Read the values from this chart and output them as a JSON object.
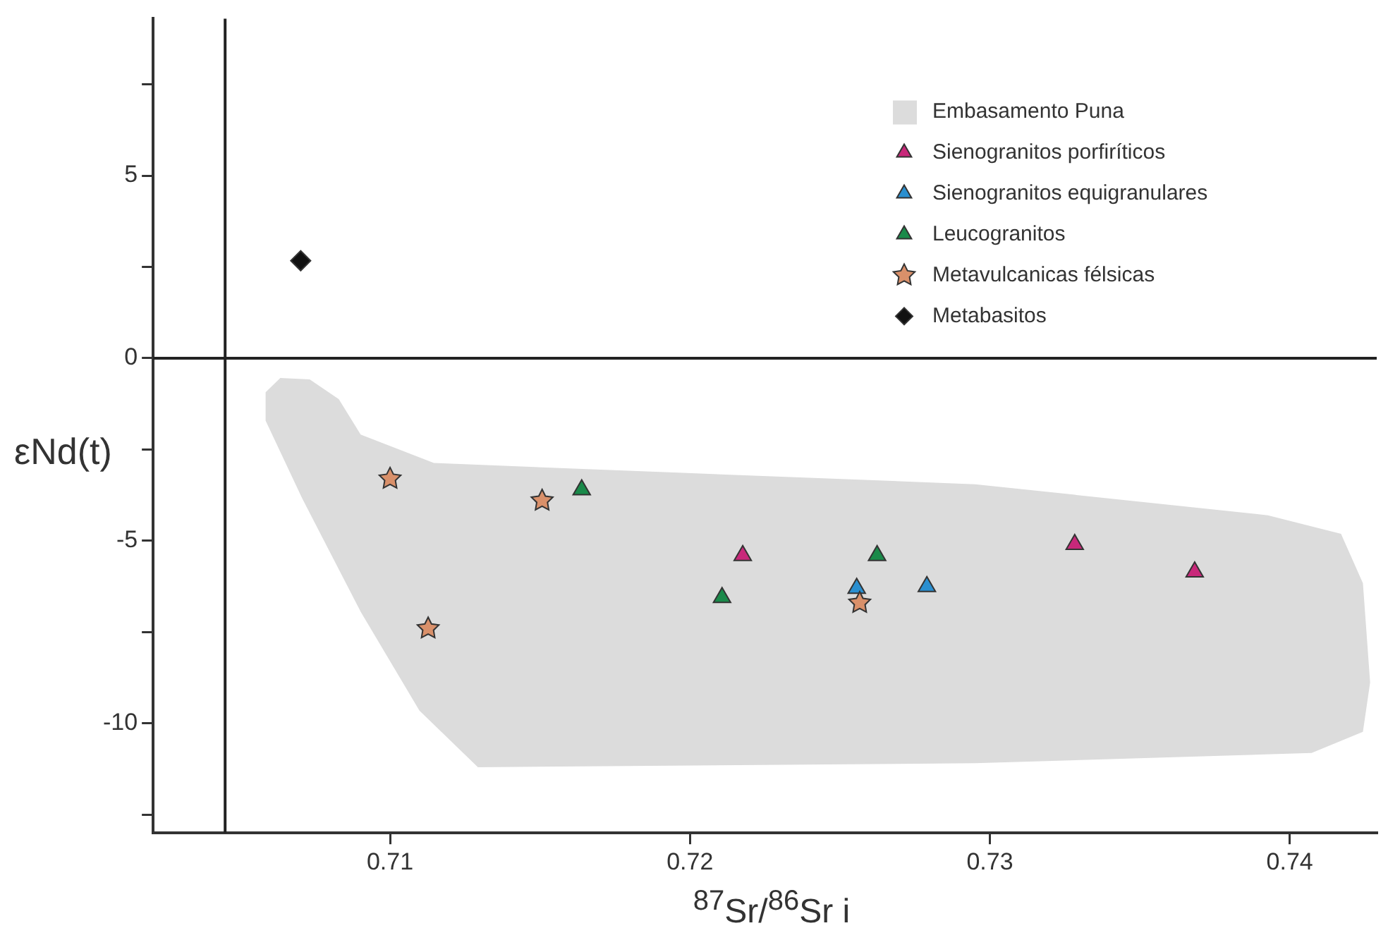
{
  "chart_data": {
    "type": "scatter",
    "xlabel": "$^{87}$Sr/$^{86}$Sr i",
    "ylabel": "εNd(t)",
    "xlim": [
      0.7021,
      0.7429
    ],
    "ylim": [
      -13,
      9.3
    ],
    "xticks": [
      0.71,
      0.72,
      0.73,
      0.74
    ],
    "yticks": [
      {
        "value": -12.5,
        "label": null
      },
      -10,
      {
        "value": -7.5,
        "label": null
      },
      -5,
      {
        "value": -2.5,
        "label": null
      },
      0,
      {
        "value": 2.5,
        "label": null
      },
      5,
      {
        "value": 7.5,
        "label": null
      }
    ],
    "grid": false,
    "legend": "top right",
    "ref_lines": [
      {
        "axis": "x",
        "value": 0.7045,
        "color": "#222222"
      },
      {
        "axis": "y",
        "value": 0,
        "color": "#222222"
      }
    ],
    "series": [
      {
        "name": "Embasamento Puna",
        "type": "area",
        "color": "#dcdcdc",
        "x": [
          0.70585,
          0.70634,
          0.70732,
          0.70829,
          0.70902,
          0.71146,
          0.71976,
          0.72951,
          0.73927,
          0.74171,
          0.74244,
          0.74268,
          0.74244,
          0.74073,
          0.72951,
          0.71293,
          0.71098,
          0.70902,
          0.70707,
          0.70585
        ],
        "values": [
          -0.93,
          -0.54,
          -0.58,
          -1.12,
          -2.09,
          -2.87,
          -3.14,
          -3.45,
          -4.3,
          -4.81,
          -6.16,
          -8.88,
          -10.23,
          -10.81,
          -11.09,
          -11.2,
          -9.65,
          -6.94,
          -3.84,
          -1.71
        ]
      },
      {
        "name": "Sienogranitos porfiríticos",
        "type": "scatter",
        "marker": "triangle",
        "color": "#c8287a",
        "x": [
          0.72176,
          0.73283,
          0.73683
        ],
        "values": [
          -5.4,
          -5.1,
          -5.85
        ]
      },
      {
        "name": "Sienogranitos equigranulares",
        "type": "scatter",
        "marker": "triangle",
        "color": "#2a8fd0",
        "x": [
          0.72556,
          0.7279
        ],
        "values": [
          -6.3,
          -6.25
        ]
      },
      {
        "name": "Leucogranitos",
        "type": "scatter",
        "marker": "triangle",
        "color": "#1a8a4a",
        "x": [
          0.71639,
          0.72107,
          0.72624
        ],
        "values": [
          -3.6,
          -6.55,
          -5.4
        ]
      },
      {
        "name": "Metavulcanicas félsicas",
        "type": "scatter",
        "marker": "star",
        "color": "#d9906a",
        "x": [
          0.71,
          0.71507,
          0.71127,
          0.72566
        ],
        "values": [
          -3.3,
          -3.9,
          -7.4,
          -6.7
        ]
      },
      {
        "name": "Metabasitos",
        "type": "scatter",
        "marker": "diamond",
        "color": "#111111",
        "x": [
          0.70702
        ],
        "values": [
          2.67
        ]
      }
    ]
  }
}
